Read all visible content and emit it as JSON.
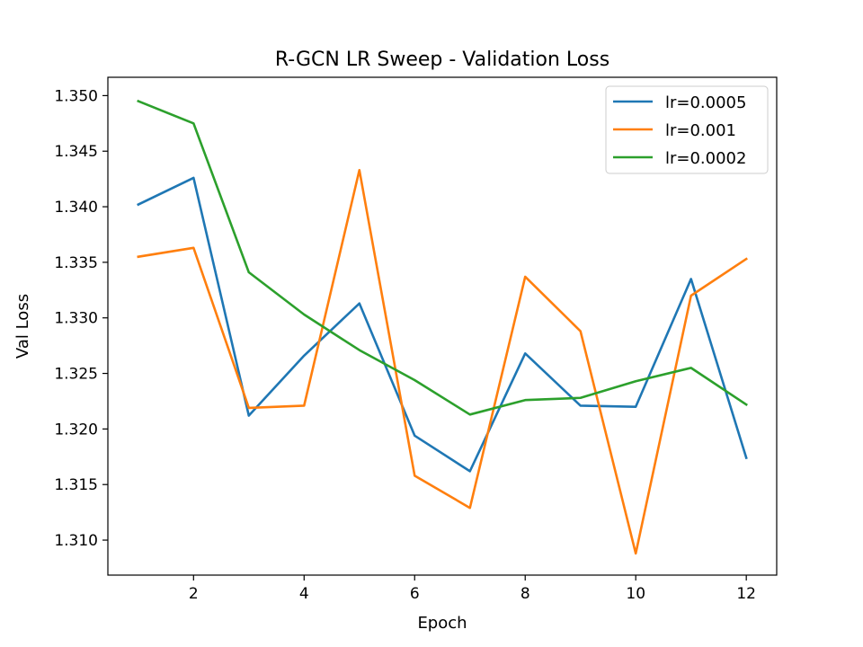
{
  "chart_data": {
    "type": "line",
    "title": "R-GCN LR Sweep - Validation Loss",
    "xlabel": "Epoch",
    "ylabel": "Val Loss",
    "xlim": [
      0.45,
      12.55
    ],
    "ylim": [
      1.30685,
      1.35165
    ],
    "x": [
      1,
      2,
      3,
      4,
      5,
      6,
      7,
      8,
      9,
      10,
      11,
      12
    ],
    "xticks": [
      2,
      4,
      6,
      8,
      10,
      12
    ],
    "xtick_labels": [
      "2",
      "4",
      "6",
      "8",
      "10",
      "12"
    ],
    "yticks": [
      1.31,
      1.315,
      1.32,
      1.325,
      1.33,
      1.335,
      1.34,
      1.345,
      1.35
    ],
    "ytick_labels": [
      "1.310",
      "1.315",
      "1.320",
      "1.325",
      "1.330",
      "1.335",
      "1.340",
      "1.345",
      "1.350"
    ],
    "grid": false,
    "legend_position": "top-right",
    "series": [
      {
        "name": "lr=0.0005",
        "color": "#1f77b4",
        "values": [
          1.3402,
          1.3426,
          1.3212,
          1.3266,
          1.3313,
          1.3194,
          1.3162,
          1.3268,
          1.3221,
          1.322,
          1.3335,
          1.3174
        ]
      },
      {
        "name": "lr=0.001",
        "color": "#ff7f0e",
        "values": [
          1.3355,
          1.3363,
          1.3219,
          1.3221,
          1.3433,
          1.3158,
          1.3129,
          1.3337,
          1.3288,
          1.3088,
          1.332,
          1.3353
        ]
      },
      {
        "name": "lr=0.0002",
        "color": "#2ca02c",
        "values": [
          1.3495,
          1.3475,
          1.3341,
          1.3303,
          1.3271,
          1.3244,
          1.3213,
          1.3226,
          1.3228,
          1.3243,
          1.3255,
          1.3222
        ]
      }
    ]
  }
}
